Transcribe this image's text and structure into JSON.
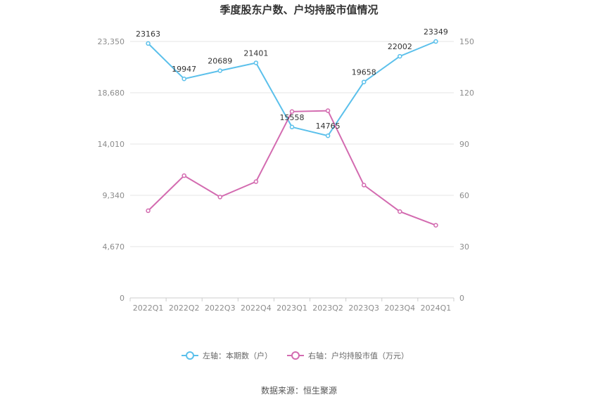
{
  "chart_data": {
    "type": "line",
    "title": "季度股东户数、户均持股市值情况",
    "categories": [
      "2022Q1",
      "2022Q2",
      "2022Q3",
      "2022Q4",
      "2023Q1",
      "2023Q2",
      "2023Q3",
      "2023Q4",
      "2024Q1"
    ],
    "left_axis": {
      "ticks": [
        "0",
        "4,670",
        "9,340",
        "14,010",
        "18,680",
        "23,350"
      ],
      "range": [
        0,
        23350
      ]
    },
    "right_axis": {
      "ticks": [
        "0",
        "30",
        "60",
        "90",
        "120",
        "150"
      ],
      "range": [
        0,
        150
      ]
    },
    "grid": true,
    "legend_position": "bottom",
    "series": [
      {
        "name": "左轴：本期数（户）",
        "axis": "left",
        "color": "#5bc0eb",
        "values": [
          23163,
          19947,
          20689,
          21401,
          15558,
          14765,
          19658,
          22002,
          23349
        ],
        "labels": [
          "23163",
          "19947",
          "20689",
          "21401",
          "15558",
          "14765",
          "19658",
          "22002",
          "23349"
        ]
      },
      {
        "name": "右轴：户均持股市值（万元）",
        "axis": "right",
        "color": "#d36bb0",
        "values": [
          51,
          71.5,
          59,
          68,
          109,
          109.5,
          66,
          50.5,
          42.5
        ]
      }
    ]
  },
  "source": "数据来源：恒生聚源"
}
